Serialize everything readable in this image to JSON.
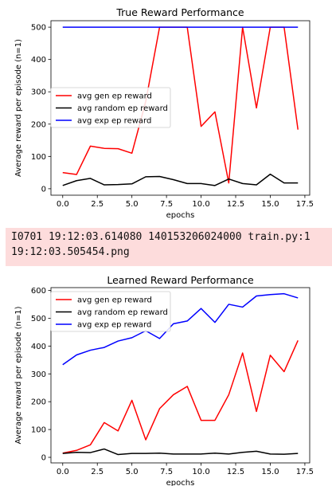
{
  "log": {
    "line1": "I0701 19:12:03.614080 140153206024000 train.py:1",
    "line2": "19:12:03.505454.png"
  },
  "chart_data": [
    {
      "type": "line",
      "title": "True Reward Performance",
      "xlabel": "epochs",
      "ylabel": "Average reward per episode (n=1)",
      "xlim": [
        -0.85,
        17.85
      ],
      "ylim": [
        -20,
        520
      ],
      "xticks": [
        0.0,
        2.5,
        5.0,
        7.5,
        10.0,
        12.5,
        15.0,
        17.5
      ],
      "xtick_labels": [
        "0.0",
        "2.5",
        "5.0",
        "7.5",
        "10.0",
        "12.5",
        "15.0",
        "17.5"
      ],
      "yticks": [
        0,
        100,
        200,
        300,
        400,
        500
      ],
      "ytick_labels": [
        "0",
        "100",
        "200",
        "300",
        "400",
        "500"
      ],
      "x": [
        0,
        1,
        2,
        3,
        4,
        5,
        6,
        7,
        8,
        9,
        10,
        11,
        12,
        13,
        14,
        15,
        16,
        17
      ],
      "legend_position": "center-left",
      "series": [
        {
          "name": "avg gen ep reward",
          "color": "#ff0000",
          "values": [
            50,
            44,
            132,
            125,
            124,
            110,
            270,
            500,
            500,
            500,
            193,
            238,
            18,
            500,
            250,
            500,
            500,
            183
          ]
        },
        {
          "name": "avg random ep reward",
          "color": "#000000",
          "values": [
            10,
            25,
            32,
            12,
            13,
            15,
            37,
            38,
            28,
            16,
            16,
            10,
            30,
            16,
            12,
            45,
            18,
            18
          ]
        },
        {
          "name": "avg exp ep reward",
          "color": "#0000ff",
          "values": [
            500,
            500,
            500,
            500,
            500,
            500,
            500,
            500,
            500,
            500,
            500,
            500,
            500,
            500,
            500,
            500,
            500,
            500
          ]
        }
      ]
    },
    {
      "type": "line",
      "title": "Learned Reward Performance",
      "xlabel": "epochs",
      "ylabel": "Average reward per episode (n=1)",
      "xlim": [
        -0.85,
        17.85
      ],
      "ylim": [
        -20,
        610
      ],
      "xticks": [
        0.0,
        2.5,
        5.0,
        7.5,
        10.0,
        12.5,
        15.0,
        17.5
      ],
      "xtick_labels": [
        "0.0",
        "2.5",
        "5.0",
        "7.5",
        "10.0",
        "12.5",
        "15.0",
        "17.5"
      ],
      "yticks": [
        0,
        100,
        200,
        300,
        400,
        500,
        600
      ],
      "ytick_labels": [
        "0",
        "100",
        "200",
        "300",
        "400",
        "500",
        "600"
      ],
      "x": [
        0,
        1,
        2,
        3,
        4,
        5,
        6,
        7,
        8,
        9,
        10,
        11,
        12,
        13,
        14,
        15,
        16,
        17
      ],
      "legend_position": "top-left",
      "series": [
        {
          "name": "avg gen ep reward",
          "color": "#ff0000",
          "values": [
            15,
            25,
            45,
            125,
            95,
            205,
            63,
            175,
            225,
            255,
            133,
            133,
            225,
            375,
            165,
            367,
            308,
            420
          ]
        },
        {
          "name": "avg random ep reward",
          "color": "#000000",
          "values": [
            14,
            18,
            17,
            30,
            10,
            14,
            14,
            15,
            12,
            12,
            12,
            15,
            12,
            18,
            22,
            12,
            11,
            14
          ]
        },
        {
          "name": "avg exp ep reward",
          "color": "#0000ff",
          "values": [
            333,
            368,
            385,
            395,
            418,
            430,
            455,
            427,
            480,
            490,
            535,
            485,
            550,
            540,
            580,
            585,
            588,
            573
          ]
        }
      ]
    }
  ]
}
